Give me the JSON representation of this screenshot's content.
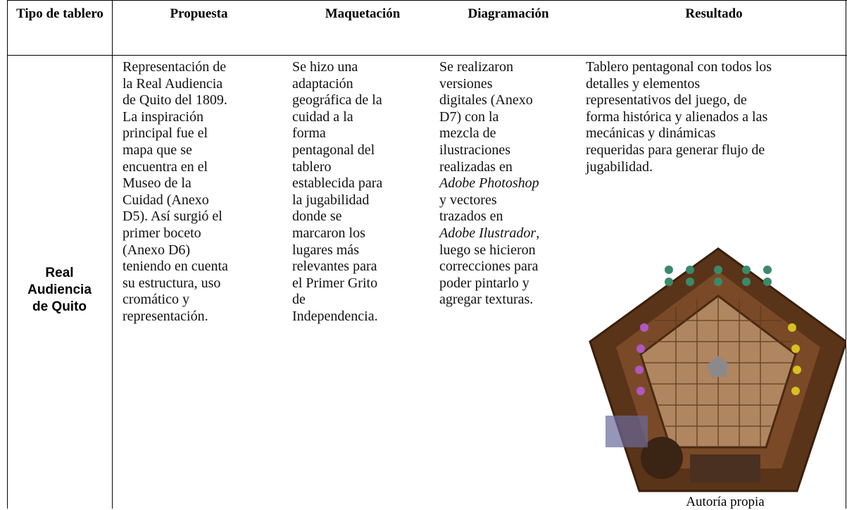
{
  "table": {
    "header": [
      "Tipo de tablero",
      "Propuesta",
      "Maquetación",
      "Diagramación",
      "Resultado"
    ],
    "row": {
      "tipo": [
        "Real",
        "Audiencia",
        "de Quito"
      ],
      "propuesta": [
        "Representación de",
        "la Real Audiencia",
        "de Quito del 1809.",
        "La inspiración",
        "principal fue el",
        "mapa que se",
        "encuentra en el",
        "Museo de la",
        "Cuidad (Anexo",
        "D5). Así surgió el",
        "primer boceto",
        "(Anexo D6)",
        "teniendo en cuenta",
        "su estructura, uso",
        "cromático y",
        "representación."
      ],
      "maquetacion": [
        "Se hizo una",
        "adaptación",
        "geográfica de la",
        "cuidad a la",
        "forma",
        "pentagonal del",
        "tablero",
        "establecida para",
        "la jugabilidad",
        "donde se",
        "marcaron los",
        "lugares más",
        "relevantes para",
        "el Primer Grito",
        "de",
        "Independencia."
      ],
      "diagramacion": [
        "Se realizaron",
        "versiones",
        "digitales (Anexo",
        "D7) con la",
        "mezcla de",
        "ilustraciones",
        "realizadas en",
        "Adobe Photoshop",
        "y vectores",
        "trazados en",
        [
          "Adobe Ilustrador",
          ","
        ],
        "luego se hicieron",
        "correcciones para",
        "poder pintarlo y",
        "agregar texturas."
      ],
      "resultado": [
        "Tablero pentagonal con todos los",
        "detalles y elementos",
        "representativos del juego, de",
        "forma histórica y alienados a las",
        "mecánicas y dinámicas",
        "requeridas para generar flujo de",
        "jugabilidad."
      ],
      "caption": "Autoría propia"
    }
  }
}
